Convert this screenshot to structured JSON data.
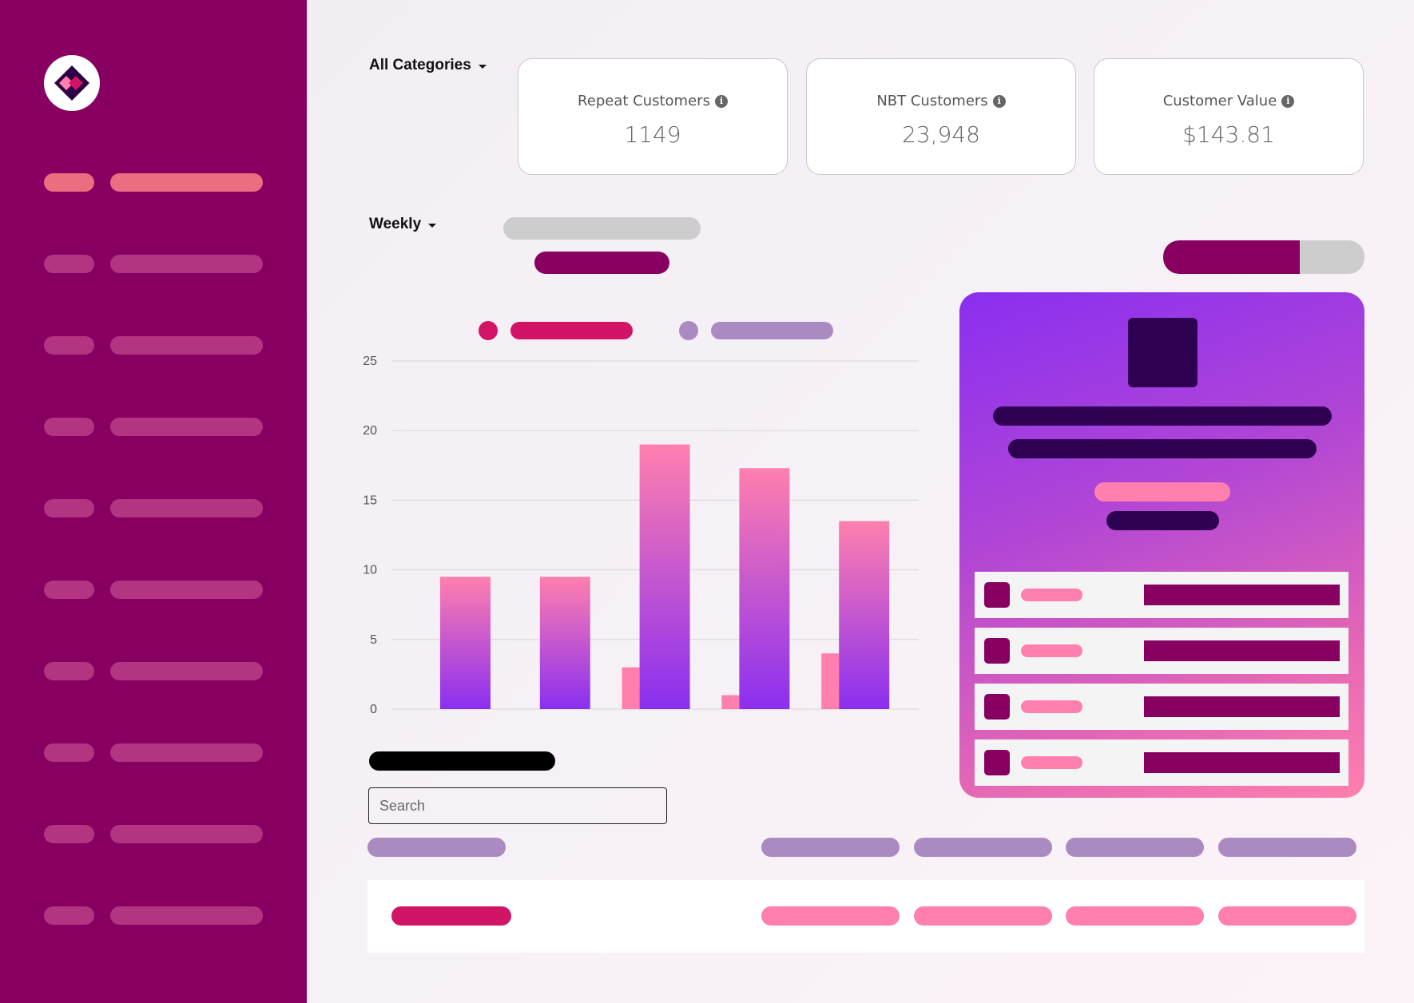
{
  "sidebar": {
    "logo_icon": "diamond-logo-icon",
    "items_count_note": "",
    "active_color": "#e96f80",
    "item_color": "#b33480",
    "background": "#870061"
  },
  "filters": {
    "category": "All Categories",
    "period": "Weekly"
  },
  "kpis": [
    {
      "title": "Repeat Customers",
      "value": "1149"
    },
    {
      "title": "NBT Customers",
      "value": "23,948"
    },
    {
      "title": "Customer Value",
      "value": "$143.81"
    }
  ],
  "search": {
    "placeholder": "Search"
  },
  "chart_data": {
    "type": "bar",
    "categories": [
      "",
      "",
      "",
      "",
      ""
    ],
    "series": [
      {
        "values": [
          0,
          0,
          3,
          1,
          4
        ],
        "color": "#ff7fae"
      },
      {
        "values": [
          9.5,
          9.5,
          19,
          17.3,
          13.5
        ],
        "color": "#8a2ff0"
      }
    ],
    "yticks": [
      "0",
      "5",
      "10",
      "15",
      "20",
      "25"
    ],
    "ylim": [
      0,
      25
    ],
    "grid": true,
    "legend": "top"
  }
}
